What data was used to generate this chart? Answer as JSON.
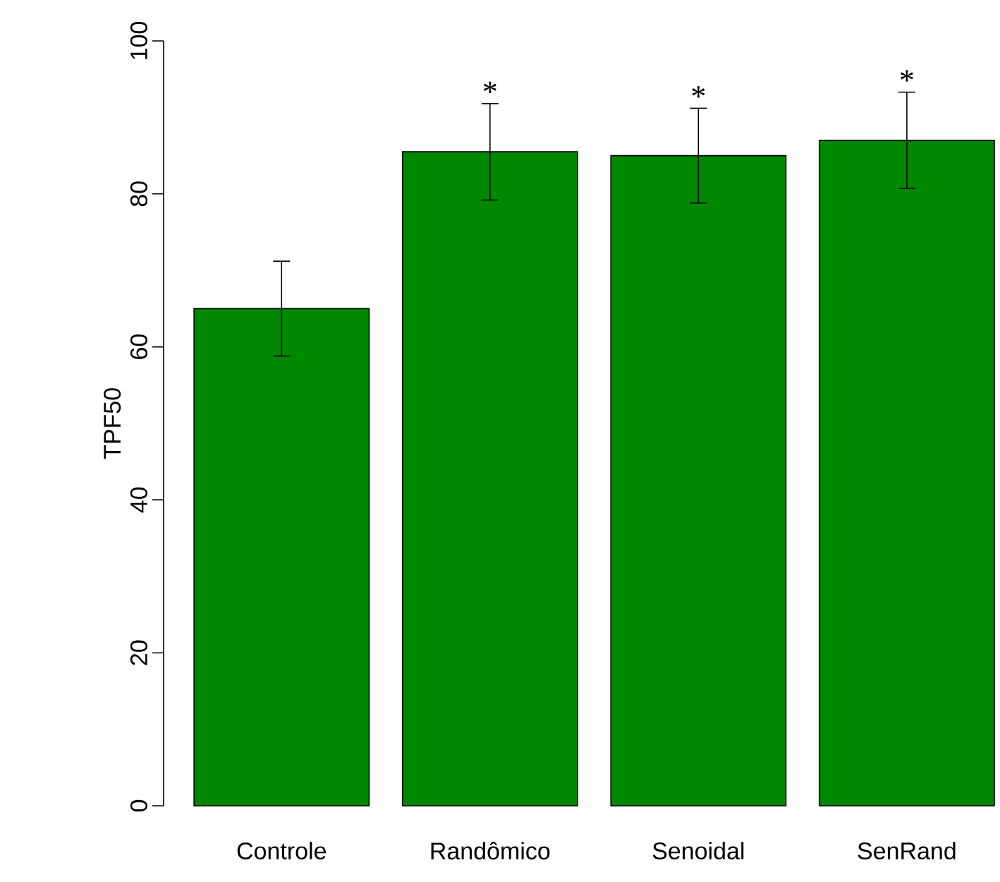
{
  "chart_data": {
    "type": "bar",
    "ylabel": "TPF50",
    "categories": [
      "Controle",
      "Randômico",
      "Senoidal",
      "SenRand"
    ],
    "values": [
      65,
      85.5,
      85,
      87
    ],
    "errors": [
      6.2,
      6.3,
      6.2,
      6.3
    ],
    "color": "#008800",
    "ylim": [
      0,
      100
    ],
    "yticks": [
      0,
      20,
      40,
      60,
      80,
      100
    ],
    "annotations": [
      "*",
      "*",
      "*"
    ]
  }
}
